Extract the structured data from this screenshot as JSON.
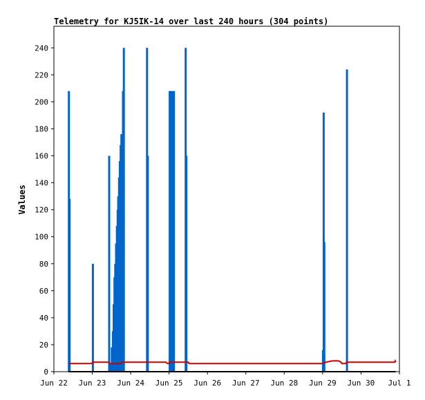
{
  "chart_data": {
    "type": "bar",
    "title": "Telemetry for KJ5IK-14 over last 240 hours (304 points)",
    "ylabel": "Values",
    "xlabel": "",
    "ylim": [
      0,
      256
    ],
    "xlim": [
      "Jun 22 00:00",
      "Jul 01 00:00"
    ],
    "y_ticks": [
      0,
      20,
      40,
      60,
      80,
      100,
      120,
      140,
      160,
      180,
      200,
      220,
      240
    ],
    "x_ticks": [
      {
        "label": "Jun 22",
        "at": "Jun 22 00:00"
      },
      {
        "label": "Jun 23",
        "at": "Jun 23 00:00"
      },
      {
        "label": "Jun 24",
        "at": "Jun 24 00:00"
      },
      {
        "label": "Jun 25",
        "at": "Jun 25 00:00"
      },
      {
        "label": "Jun 26",
        "at": "Jun 26 00:00"
      },
      {
        "label": "Jun 27",
        "at": "Jun 27 00:00"
      },
      {
        "label": "Jun 28",
        "at": "Jun 28 00:00"
      },
      {
        "label": "Jun 29",
        "at": "Jun 29 00:00"
      },
      {
        "label": "Jun 30",
        "at": "Jun 30 00:00"
      },
      {
        "label": "Jul 1",
        "at": "Jul 01 00:00"
      }
    ],
    "grid": false,
    "legend": "none",
    "series": [
      {
        "kind": "bars",
        "color": "#0066cc",
        "points": [
          {
            "x": "Jun 22 09:10",
            "y": 208
          },
          {
            "x": "Jun 22 09:35",
            "y": 128
          },
          {
            "x": "Jun 23 00:10",
            "y": 80
          },
          {
            "x": "Jun 23 10:20",
            "y": 160
          },
          {
            "x": "Jun 23 11:00",
            "y": 6
          },
          {
            "x": "Jun 23 12:00",
            "y": 18
          },
          {
            "x": "Jun 23 12:40",
            "y": 30
          },
          {
            "x": "Jun 23 13:10",
            "y": 50
          },
          {
            "x": "Jun 23 13:40",
            "y": 70
          },
          {
            "x": "Jun 23 14:10",
            "y": 80
          },
          {
            "x": "Jun 23 14:40",
            "y": 95
          },
          {
            "x": "Jun 23 15:10",
            "y": 108
          },
          {
            "x": "Jun 23 15:40",
            "y": 120
          },
          {
            "x": "Jun 23 16:00",
            "y": 130
          },
          {
            "x": "Jun 23 16:30",
            "y": 144
          },
          {
            "x": "Jun 23 17:00",
            "y": 156
          },
          {
            "x": "Jun 23 17:30",
            "y": 168
          },
          {
            "x": "Jun 23 18:00",
            "y": 176
          },
          {
            "x": "Jun 23 18:30",
            "y": 176
          },
          {
            "x": "Jun 23 19:00",
            "y": 208
          },
          {
            "x": "Jun 23 19:30",
            "y": 240
          },
          {
            "x": "Jun 24 10:00",
            "y": 240
          },
          {
            "x": "Jun 24 10:30",
            "y": 160
          },
          {
            "x": "Jun 25 00:10",
            "y": 208
          },
          {
            "x": "Jun 25 00:50",
            "y": 208
          },
          {
            "x": "Jun 25 01:30",
            "y": 208
          },
          {
            "x": "Jun 25 02:10",
            "y": 208
          },
          {
            "x": "Jun 25 02:50",
            "y": 208
          },
          {
            "x": "Jun 25 10:10",
            "y": 240
          },
          {
            "x": "Jun 25 10:35",
            "y": 160
          },
          {
            "x": "Jun 29 00:00",
            "y": 16
          },
          {
            "x": "Jun 29 00:25",
            "y": 192
          },
          {
            "x": "Jun 29 00:50",
            "y": 96
          },
          {
            "x": "Jun 29 15:00",
            "y": 224
          }
        ]
      },
      {
        "kind": "line",
        "color": "#cc0000",
        "points": [
          {
            "x": "Jun 22 09:10",
            "y": 6
          },
          {
            "x": "Jun 23 00:00",
            "y": 6
          },
          {
            "x": "Jun 23 00:10",
            "y": 7
          },
          {
            "x": "Jun 23 10:00",
            "y": 7
          },
          {
            "x": "Jun 23 11:00",
            "y": 6
          },
          {
            "x": "Jun 23 18:00",
            "y": 6
          },
          {
            "x": "Jun 23 18:30",
            "y": 7
          },
          {
            "x": "Jun 24 22:00",
            "y": 7
          },
          {
            "x": "Jun 24 23:00",
            "y": 6
          },
          {
            "x": "Jun 25 00:00",
            "y": 6
          },
          {
            "x": "Jun 25 00:10",
            "y": 7
          },
          {
            "x": "Jun 25 12:00",
            "y": 7
          },
          {
            "x": "Jun 25 12:30",
            "y": 6
          },
          {
            "x": "Jun 29 00:00",
            "y": 6
          },
          {
            "x": "Jun 29 02:00",
            "y": 7
          },
          {
            "x": "Jun 29 06:00",
            "y": 8
          },
          {
            "x": "Jun 29 10:00",
            "y": 8
          },
          {
            "x": "Jun 29 11:30",
            "y": 7
          },
          {
            "x": "Jun 29 12:00",
            "y": 6
          },
          {
            "x": "Jun 29 14:30",
            "y": 6
          },
          {
            "x": "Jun 29 15:00",
            "y": 7
          },
          {
            "x": "Jun 30 21:00",
            "y": 7
          },
          {
            "x": "Jun 30 21:20",
            "y": 8
          },
          {
            "x": "Jun 30 21:40",
            "y": 7
          }
        ]
      },
      {
        "kind": "line",
        "color": "#000000",
        "points": [
          {
            "x": "Jun 22 09:10",
            "y": 0
          },
          {
            "x": "Jun 30 21:40",
            "y": 0
          }
        ]
      }
    ]
  }
}
